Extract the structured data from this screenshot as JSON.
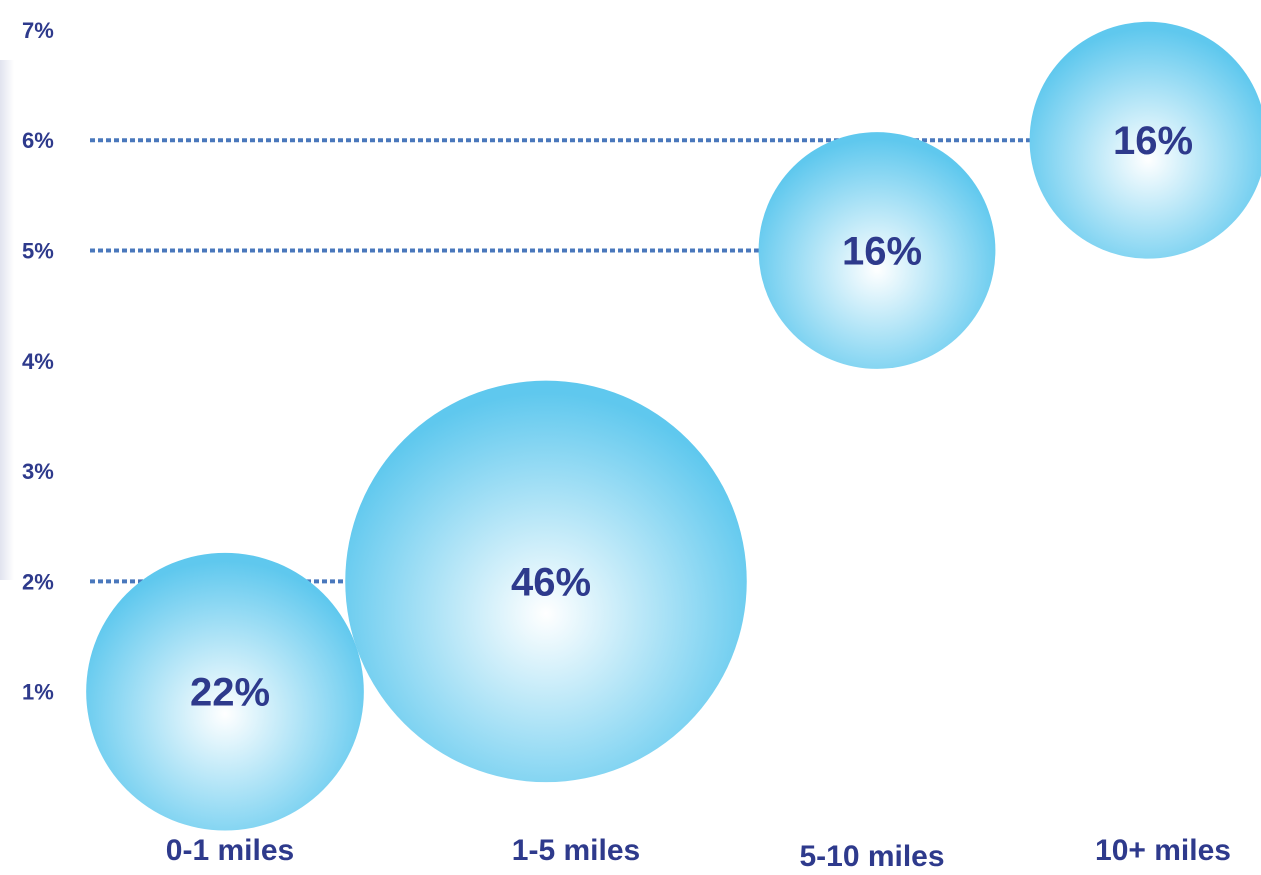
{
  "chart_data": {
    "type": "scatter",
    "subtype": "bubble",
    "categories": [
      "0-1 miles",
      "1-5 miles",
      "5-10 miles",
      "10+ miles"
    ],
    "y": [
      1,
      2,
      5,
      6
    ],
    "bubble_labels": [
      "22%",
      "46%",
      "16%",
      "16%"
    ],
    "bubble_size_values": [
      22,
      46,
      16,
      16
    ],
    "y_ticks": [
      "1%",
      "2%",
      "3%",
      "4%",
      "5%",
      "6%",
      "7%"
    ],
    "ylim": [
      0,
      7
    ],
    "grid": false,
    "legend": "none",
    "title": "",
    "xlabel": "",
    "ylabel": ""
  },
  "colors": {
    "label_text": "#2E3A8C",
    "bubble_light": "#FFFFFF",
    "bubble_dark": "#5FC8EE",
    "leader_line": "#4A78BC"
  }
}
